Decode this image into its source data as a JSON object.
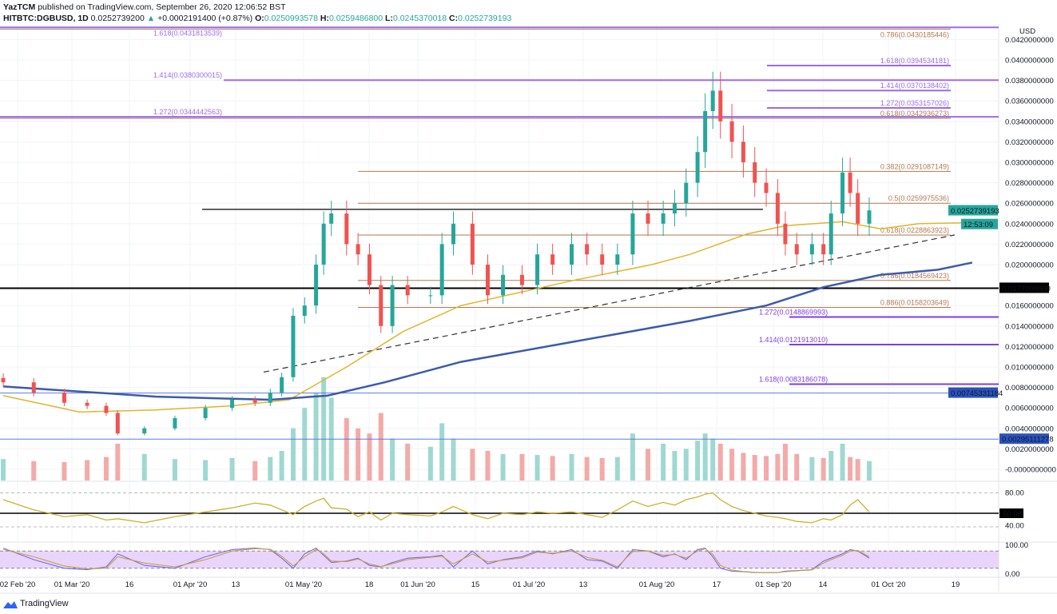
{
  "header": {
    "author": "YazTCM",
    "published": "published on TradingView.com, September 26, 2020 12:06:52 BST",
    "symbol": "HITBTC:DGBUSD, 1D",
    "last": "0.0252739200",
    "change": "+0.0002191400 (+0.87%)",
    "o_label": "O:",
    "o": "0.0250993578",
    "h_label": "H:",
    "h": "0.0259486800",
    "l_label": "L:",
    "l": "0.0245370018",
    "c_label": "C:",
    "c": "0.0252739193"
  },
  "footer": {
    "logo": "TradingView"
  },
  "colors": {
    "up": "#26a69a",
    "down": "#ef5350",
    "ma_fast": "#e0b52a",
    "ma_slow": "#3d5aad",
    "fib": "#b07a50",
    "ext": "#7b3fe4",
    "rsi": "#c9b22b"
  },
  "chart_data": {
    "type": "candlestick",
    "currency": "USD",
    "ylim": [
      0,
      0.042
    ],
    "y_ticks": [
      "0.0420000000",
      "0.0400000000",
      "0.0380000000",
      "0.0360000000",
      "0.0340000000",
      "0.0320000000",
      "0.0300000000",
      "0.0280000000",
      "0.0260000000",
      "0.0240000000",
      "0.0220000000",
      "0.0200000000",
      "0.0160000000",
      "0.0140000000",
      "0.0120000000",
      "0.0100000000",
      "0.0080000000",
      "0.0060000000",
      "0.0040000000",
      "0.0020000000",
      "-0.0000000000"
    ],
    "x_ticks": [
      "02 Feb '20",
      "01 Mar '20",
      "16",
      "01 Apr '20",
      "13",
      "01 May '20",
      "18",
      "01 Jun '20",
      "15",
      "01 Jul '20",
      "13",
      "01 Aug '20",
      "17",
      "01 Sep '20",
      "14",
      "01 Oct '20",
      "19"
    ],
    "dates": [
      "2020-02-12",
      "2020-02-20",
      "2020-02-28",
      "2020-03-05",
      "2020-03-10",
      "2020-03-13",
      "2020-03-20",
      "2020-03-28",
      "2020-04-05",
      "2020-04-12",
      "2020-04-18",
      "2020-04-22",
      "2020-04-25",
      "2020-04-28",
      "2020-05-01",
      "2020-05-04",
      "2020-05-06",
      "2020-05-08",
      "2020-05-12",
      "2020-05-15",
      "2020-05-18",
      "2020-05-21",
      "2020-05-24",
      "2020-05-28",
      "2020-06-03",
      "2020-06-06",
      "2020-06-09",
      "2020-06-14",
      "2020-06-18",
      "2020-06-22",
      "2020-06-27",
      "2020-07-01",
      "2020-07-05",
      "2020-07-10",
      "2020-07-14",
      "2020-07-18",
      "2020-07-22",
      "2020-07-26",
      "2020-07-30",
      "2020-08-03",
      "2020-08-06",
      "2020-08-09",
      "2020-08-12",
      "2020-08-14",
      "2020-08-16",
      "2020-08-18",
      "2020-08-21",
      "2020-08-24",
      "2020-08-27",
      "2020-08-30",
      "2020-09-02",
      "2020-09-04",
      "2020-09-07",
      "2020-09-11",
      "2020-09-14",
      "2020-09-16",
      "2020-09-19",
      "2020-09-21",
      "2020-09-23",
      "2020-09-26"
    ],
    "close": [
      0.0085,
      0.0075,
      0.0065,
      0.0062,
      0.0055,
      0.0035,
      0.004,
      0.005,
      0.006,
      0.0068,
      0.0065,
      0.0075,
      0.009,
      0.015,
      0.016,
      0.02,
      0.024,
      0.025,
      0.022,
      0.021,
      0.018,
      0.014,
      0.018,
      0.017,
      0.017,
      0.022,
      0.024,
      0.02,
      0.017,
      0.019,
      0.018,
      0.021,
      0.02,
      0.022,
      0.021,
      0.02,
      0.021,
      0.025,
      0.024,
      0.025,
      0.026,
      0.028,
      0.031,
      0.035,
      0.037,
      0.034,
      0.032,
      0.03,
      0.028,
      0.027,
      0.024,
      0.022,
      0.021,
      0.022,
      0.021,
      0.025,
      0.029,
      0.027,
      0.024,
      0.0253
    ],
    "volume": [
      0.001,
      0.0008,
      0.0007,
      0.0009,
      0.0012,
      0.0025,
      0.0015,
      0.001,
      0.0009,
      0.0011,
      0.0008,
      0.0012,
      0.0018,
      0.004,
      0.006,
      0.0075,
      0.009,
      0.007,
      0.005,
      0.004,
      0.0035,
      0.0055,
      0.003,
      0.0025,
      0.0022,
      0.0045,
      0.003,
      0.002,
      0.0018,
      0.0015,
      0.0015,
      0.0014,
      0.0013,
      0.0015,
      0.0012,
      0.0011,
      0.0012,
      0.0035,
      0.002,
      0.0025,
      0.0018,
      0.002,
      0.0028,
      0.0035,
      0.003,
      0.0025,
      0.002,
      0.0016,
      0.0014,
      0.0013,
      0.0015,
      0.0025,
      0.0015,
      0.0012,
      0.0011,
      0.0018,
      0.0025,
      0.0012,
      0.001,
      0.0008
    ],
    "ma_fast": [
      [
        0,
        0.0072
      ],
      [
        20,
        0.0056
      ],
      [
        40,
        0.0058
      ],
      [
        60,
        0.0062
      ],
      [
        75,
        0.0068
      ],
      [
        90,
        0.01
      ],
      [
        105,
        0.0135
      ],
      [
        120,
        0.016
      ],
      [
        150,
        0.0185
      ],
      [
        170,
        0.02
      ],
      [
        180,
        0.021
      ],
      [
        195,
        0.023
      ],
      [
        205,
        0.0238
      ],
      [
        220,
        0.0242
      ],
      [
        230,
        0.0235
      ],
      [
        240,
        0.024
      ],
      [
        254,
        0.0241
      ]
    ],
    "ma_slow": [
      [
        0,
        0.0081
      ],
      [
        40,
        0.0071
      ],
      [
        70,
        0.0068
      ],
      [
        85,
        0.0072
      ],
      [
        100,
        0.0085
      ],
      [
        120,
        0.0105
      ],
      [
        150,
        0.0125
      ],
      [
        180,
        0.0145
      ],
      [
        200,
        0.016
      ],
      [
        215,
        0.0178
      ],
      [
        230,
        0.019
      ],
      [
        245,
        0.0195
      ],
      [
        254,
        0.0202
      ]
    ],
    "horizontal_levels": [
      {
        "label": "1.618(0.0431813539)",
        "value": 0.0431813539,
        "kind": "ext",
        "side": "left"
      },
      {
        "label": "1.414(0.0380300015)",
        "value": 0.0380300015,
        "kind": "ext",
        "side": "left"
      },
      {
        "label": "1.272(0.0344442563)",
        "value": 0.0344442563,
        "kind": "ext",
        "side": "left"
      },
      {
        "label": "0.786(0.0430185446)",
        "value": 0.0430185446,
        "kind": "fib",
        "side": "right"
      },
      {
        "label": "1.618(0.0394534181)",
        "value": 0.0394534181,
        "kind": "ext",
        "side": "right"
      },
      {
        "label": "1.414(0.0370138402)",
        "value": 0.0370138402,
        "kind": "ext",
        "side": "right"
      },
      {
        "label": "1.272(0.0353157026)",
        "value": 0.0353157026,
        "kind": "ext",
        "side": "right"
      },
      {
        "label": "0.618(0.0342936273)",
        "value": 0.0342936273,
        "kind": "fib",
        "side": "right"
      },
      {
        "label": "0.382(0.0291087149)",
        "value": 0.0291087149,
        "kind": "fib",
        "side": "right"
      },
      {
        "label": "0.5(0.0259975536)",
        "value": 0.0259975536,
        "kind": "fib",
        "side": "right"
      },
      {
        "label": "0.618(0.0228863923)",
        "value": 0.0228863923,
        "kind": "fib",
        "side": "right"
      },
      {
        "label": "0.786(0.0184569423)",
        "value": 0.0184569423,
        "kind": "fib",
        "side": "right"
      },
      {
        "label": "0.886(0.0158203649)",
        "value": 0.0158203649,
        "kind": "fib",
        "side": "right"
      },
      {
        "label": "1.272(0.0148869993)",
        "value": 0.0148869993,
        "kind": "ext2",
        "side": "right"
      },
      {
        "label": "1.414(0.0121913010)",
        "value": 0.012191301,
        "kind": "ext2",
        "side": "right"
      },
      {
        "label": "1.618(0.0083186078)",
        "value": 0.0083186078,
        "kind": "ext2",
        "side": "right"
      }
    ],
    "price_tags": [
      {
        "label": "0.0252739193",
        "value": 0.0252739193,
        "color": "#26a69a"
      },
      {
        "label": "12:53:09",
        "value": 0.0244,
        "color": "#26a69a"
      },
      {
        "label": "0.0177000000",
        "value": 0.0177,
        "color": "#000000"
      },
      {
        "label": "0.00745331184",
        "value": 0.00745331184,
        "color": "#2a52be"
      },
      {
        "label": "0.00295111278",
        "value": 0.00295111278,
        "color": "#2a52be"
      }
    ],
    "rsi": {
      "ticks": [
        "80.00",
        "50.00",
        "40.00"
      ],
      "level_tag": "50.00",
      "values": [
        70,
        55,
        45,
        48,
        40,
        42,
        36,
        45,
        52,
        58,
        65,
        62,
        55,
        48,
        60,
        68,
        72,
        58,
        56,
        45,
        52,
        40,
        50,
        48,
        46,
        52,
        60,
        48,
        42,
        50,
        48,
        52,
        50,
        52,
        48,
        44,
        55,
        68,
        60,
        66,
        62,
        70,
        74,
        78,
        80,
        70,
        60,
        54,
        50,
        46,
        44,
        42,
        38,
        36,
        42,
        40,
        48,
        62,
        70,
        52
      ]
    },
    "stoch_rsi": {
      "ticks": [
        "100.00",
        "0.00"
      ],
      "k": [
        90,
        50,
        20,
        15,
        25,
        70,
        30,
        20,
        60,
        85,
        90,
        85,
        55,
        20,
        70,
        90,
        65,
        40,
        45,
        55,
        30,
        25,
        40,
        55,
        60,
        65,
        25,
        80,
        35,
        50,
        60,
        80,
        70,
        85,
        50,
        45,
        20,
        85,
        80,
        60,
        70,
        50,
        85,
        90,
        60,
        20,
        10,
        8,
        5,
        5,
        5,
        10,
        12,
        15,
        45,
        55,
        70,
        85,
        80,
        55
      ],
      "d": [
        85,
        60,
        28,
        18,
        20,
        60,
        38,
        25,
        50,
        80,
        88,
        86,
        62,
        28,
        60,
        85,
        70,
        45,
        43,
        52,
        35,
        26,
        36,
        50,
        58,
        62,
        35,
        70,
        42,
        48,
        56,
        76,
        72,
        80,
        58,
        48,
        25,
        78,
        80,
        65,
        68,
        55,
        80,
        88,
        68,
        30,
        14,
        9,
        6,
        5,
        5,
        8,
        11,
        14,
        38,
        50,
        65,
        80,
        82,
        60
      ]
    }
  }
}
